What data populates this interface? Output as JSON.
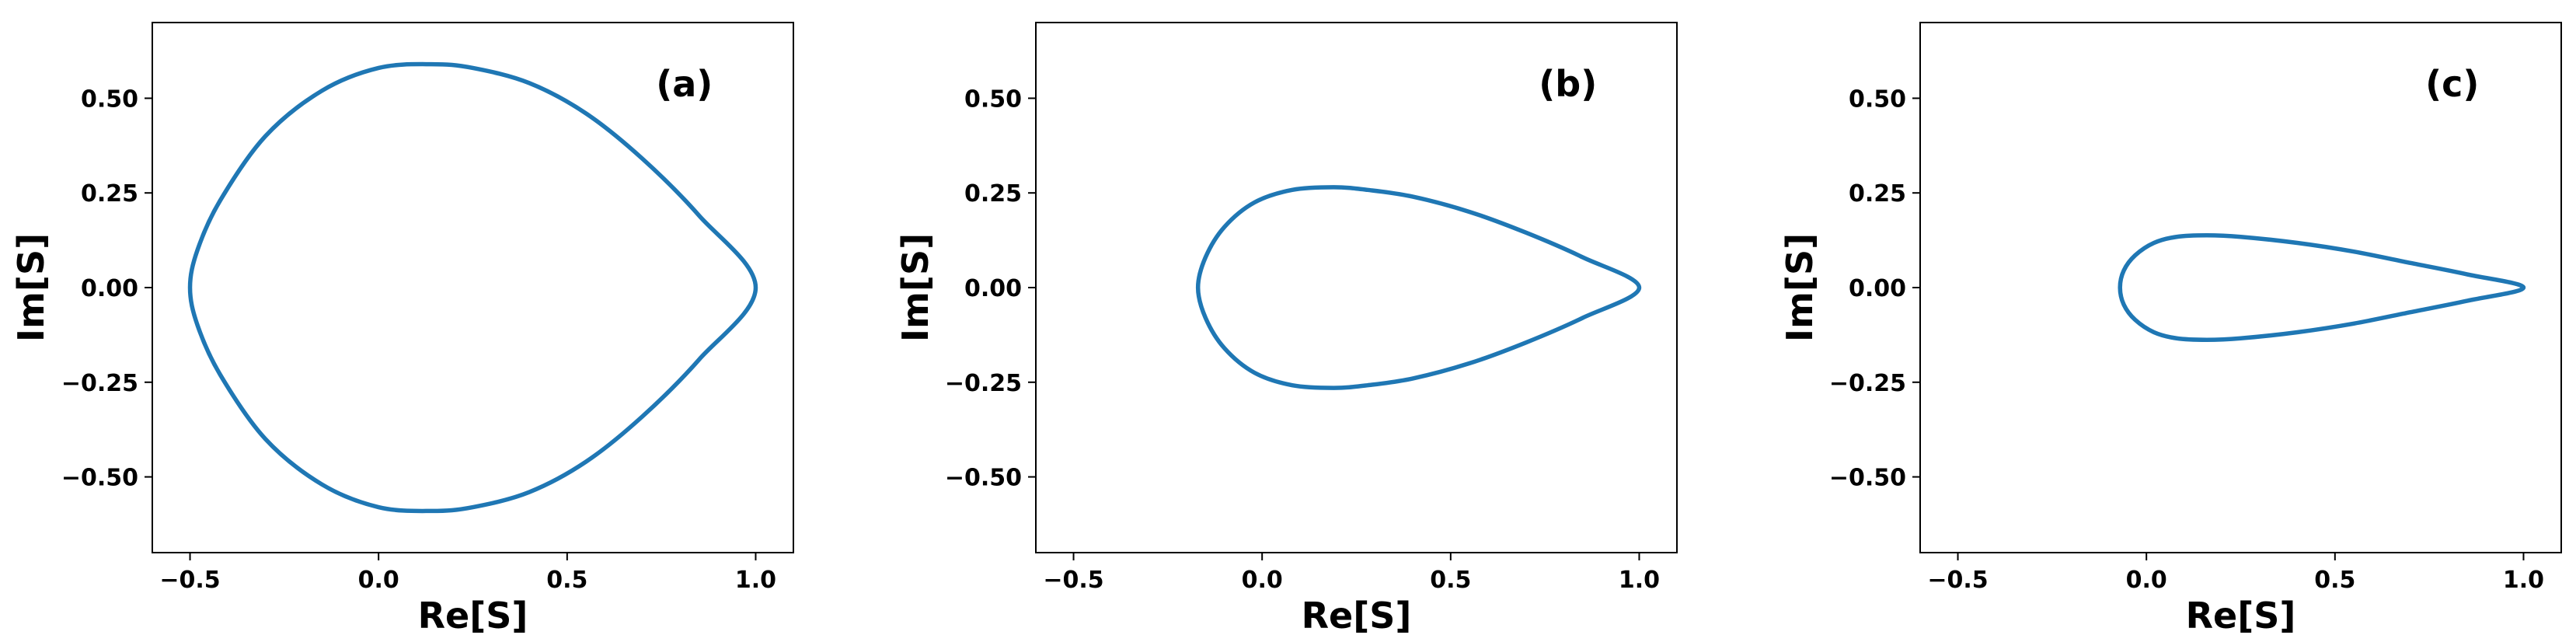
{
  "colors": {
    "series": "#1f77b4",
    "axes": "#000000",
    "background": "#ffffff"
  },
  "chart_data": [
    {
      "type": "line",
      "panel_label": "(a)",
      "xlabel": "Re[S]",
      "ylabel": "Im[S]",
      "xlim": [
        -0.6,
        1.1
      ],
      "ylim": [
        -0.7,
        0.7
      ],
      "xticks": [
        -0.5,
        0.0,
        0.5,
        1.0
      ],
      "xtick_labels": [
        "−0.5",
        "0.0",
        "0.5",
        "1.0"
      ],
      "yticks": [
        -0.5,
        -0.25,
        0.0,
        0.25,
        0.5
      ],
      "ytick_labels": [
        "−0.50",
        "−0.25",
        "0.00",
        "0.25",
        "0.50"
      ],
      "grid": false,
      "series": [
        {
          "closed": true,
          "x": [
            1.0,
            0.85,
            0.7,
            0.55,
            0.4,
            0.25,
            0.14,
            0.0,
            -0.15,
            -0.3,
            -0.42,
            -0.48,
            -0.5
          ],
          "y": [
            0.0,
            0.19,
            0.34,
            0.46,
            0.54,
            0.58,
            0.59,
            0.58,
            0.52,
            0.4,
            0.23,
            0.1,
            0.0
          ]
        }
      ]
    },
    {
      "type": "line",
      "panel_label": "(b)",
      "xlabel": "Re[S]",
      "ylabel": "Im[S]",
      "xlim": [
        -0.6,
        1.1
      ],
      "ylim": [
        -0.7,
        0.7
      ],
      "xticks": [
        -0.5,
        0.0,
        0.5,
        1.0
      ],
      "xtick_labels": [
        "−0.5",
        "0.0",
        "0.5",
        "1.0"
      ],
      "yticks": [
        -0.5,
        -0.25,
        0.0,
        0.25,
        0.5
      ],
      "ytick_labels": [
        "−0.50",
        "−0.25",
        "0.00",
        "0.25",
        "0.50"
      ],
      "grid": false,
      "series": [
        {
          "closed": true,
          "x": [
            1.0,
            0.85,
            0.7,
            0.55,
            0.4,
            0.28,
            0.19,
            0.08,
            -0.02,
            -0.1,
            -0.15,
            -0.17
          ],
          "y": [
            0.0,
            0.08,
            0.145,
            0.2,
            0.24,
            0.258,
            0.265,
            0.258,
            0.225,
            0.16,
            0.08,
            0.0
          ]
        }
      ]
    },
    {
      "type": "line",
      "panel_label": "(c)",
      "xlabel": "Re[S]",
      "ylabel": "Im[S]",
      "xlim": [
        -0.6,
        1.1
      ],
      "ylim": [
        -0.7,
        0.7
      ],
      "xticks": [
        -0.5,
        0.0,
        0.5,
        1.0
      ],
      "xtick_labels": [
        "−0.5",
        "0.0",
        "0.5",
        "1.0"
      ],
      "yticks": [
        -0.5,
        -0.25,
        0.0,
        0.25,
        0.5
      ],
      "ytick_labels": [
        "−0.50",
        "−0.25",
        "0.00",
        "0.25",
        "0.50"
      ],
      "grid": false,
      "series": [
        {
          "closed": true,
          "x": [
            1.0,
            0.85,
            0.7,
            0.55,
            0.4,
            0.25,
            0.16,
            0.08,
            0.02,
            -0.03,
            -0.06,
            -0.07
          ],
          "y": [
            0.0,
            0.035,
            0.065,
            0.095,
            0.118,
            0.134,
            0.138,
            0.134,
            0.118,
            0.085,
            0.045,
            0.0
          ]
        }
      ]
    }
  ]
}
